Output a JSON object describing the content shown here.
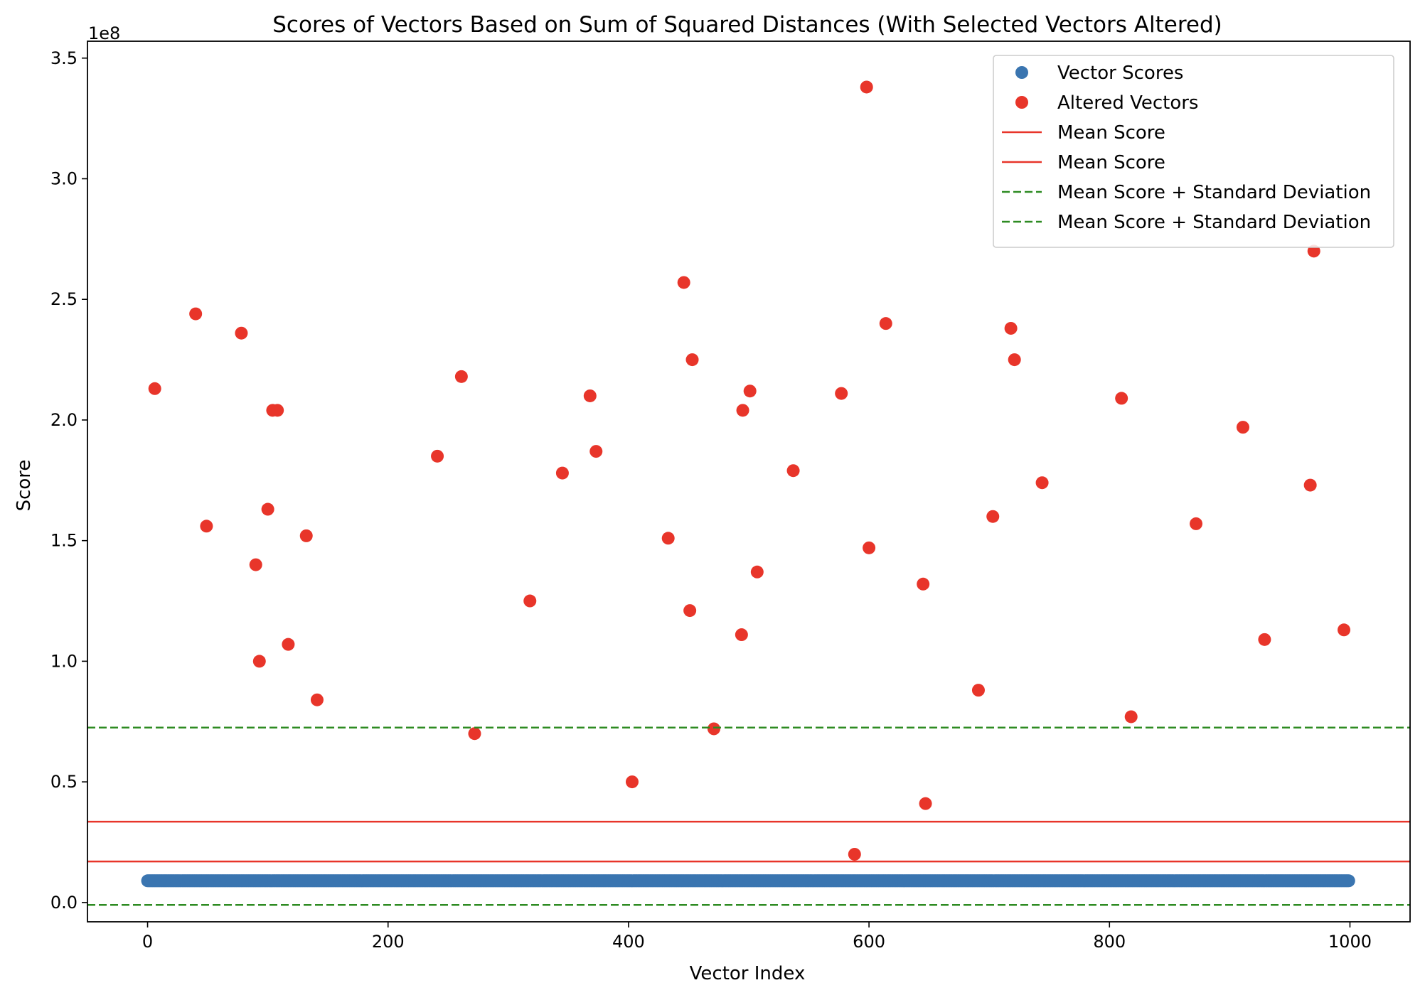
{
  "chart_data": {
    "type": "scatter",
    "title": "Scores of Vectors Based on Sum of Squared Distances (With Selected Vectors Altered)",
    "xlabel": "Vector Index",
    "ylabel": "Score",
    "y_offset_label": "1e8",
    "xlim": [
      -50,
      1050
    ],
    "ylim": [
      -0.08,
      3.57
    ],
    "y_scale_note": "values in units of 1e8",
    "xticks": [
      0,
      200,
      400,
      600,
      800,
      1000
    ],
    "xtick_labels": [
      "0",
      "200",
      "400",
      "600",
      "800",
      "1000"
    ],
    "yticks": [
      0.0,
      0.5,
      1.0,
      1.5,
      2.0,
      2.5,
      3.0,
      3.5
    ],
    "ytick_labels": [
      "0.0",
      "0.5",
      "1.0",
      "1.5",
      "2.0",
      "2.5",
      "3.0",
      "3.5"
    ],
    "grid": false,
    "legend_position": "top-right",
    "colors": {
      "vector_scores": "#3a75b0",
      "altered": "#e8352a",
      "mean": "#e8352a",
      "std": "#2e8b22"
    },
    "vector_scores": {
      "name": "Vector Scores",
      "x_start": 0,
      "x_end": 999,
      "count": 1000,
      "value": 0.09
    },
    "altered_vectors": {
      "name": "Altered Vectors",
      "points": [
        [
          6,
          2.13
        ],
        [
          40,
          2.44
        ],
        [
          49,
          1.56
        ],
        [
          78,
          2.36
        ],
        [
          90,
          1.4
        ],
        [
          93,
          1.0
        ],
        [
          100,
          1.63
        ],
        [
          104,
          2.04
        ],
        [
          108,
          2.04
        ],
        [
          117,
          1.07
        ],
        [
          132,
          1.52
        ],
        [
          141,
          0.84
        ],
        [
          241,
          1.85
        ],
        [
          261,
          2.18
        ],
        [
          272,
          0.7
        ],
        [
          318,
          1.25
        ],
        [
          345,
          1.78
        ],
        [
          368,
          2.1
        ],
        [
          373,
          1.87
        ],
        [
          403,
          0.5
        ],
        [
          433,
          1.51
        ],
        [
          446,
          2.57
        ],
        [
          451,
          1.21
        ],
        [
          453,
          2.25
        ],
        [
          471,
          0.72
        ],
        [
          494,
          1.11
        ],
        [
          495,
          2.04
        ],
        [
          501,
          2.12
        ],
        [
          507,
          1.37
        ],
        [
          537,
          1.79
        ],
        [
          577,
          2.11
        ],
        [
          588,
          0.2
        ],
        [
          598,
          3.38
        ],
        [
          600,
          1.47
        ],
        [
          614,
          2.4
        ],
        [
          645,
          1.32
        ],
        [
          647,
          0.41
        ],
        [
          691,
          0.88
        ],
        [
          703,
          1.6
        ],
        [
          718,
          2.38
        ],
        [
          721,
          2.25
        ],
        [
          744,
          1.74
        ],
        [
          810,
          2.09
        ],
        [
          818,
          0.77
        ],
        [
          872,
          1.57
        ],
        [
          911,
          1.97
        ],
        [
          929,
          1.09
        ],
        [
          967,
          1.73
        ],
        [
          970,
          2.7
        ],
        [
          995,
          1.13
        ]
      ]
    },
    "lines": [
      {
        "name": "Mean Score",
        "value": 0.335,
        "style": "solid",
        "color_key": "mean"
      },
      {
        "name": "Mean Score",
        "value": 0.17,
        "style": "solid",
        "color_key": "mean"
      },
      {
        "name": "Mean Score + Standard Deviation",
        "value": 0.725,
        "style": "dashed",
        "color_key": "std"
      },
      {
        "name": "Mean Score + Standard Deviation",
        "value": -0.01,
        "style": "dashed",
        "color_key": "std"
      }
    ],
    "legend": [
      {
        "label": "Vector Scores",
        "kind": "dot",
        "color_key": "vector_scores"
      },
      {
        "label": "Altered Vectors",
        "kind": "dot",
        "color_key": "altered"
      },
      {
        "label": "Mean Score",
        "kind": "solid",
        "color_key": "mean"
      },
      {
        "label": "Mean Score",
        "kind": "solid",
        "color_key": "mean"
      },
      {
        "label": "Mean Score + Standard Deviation",
        "kind": "dashed",
        "color_key": "std"
      },
      {
        "label": "Mean Score + Standard Deviation",
        "kind": "dashed",
        "color_key": "std"
      }
    ]
  }
}
